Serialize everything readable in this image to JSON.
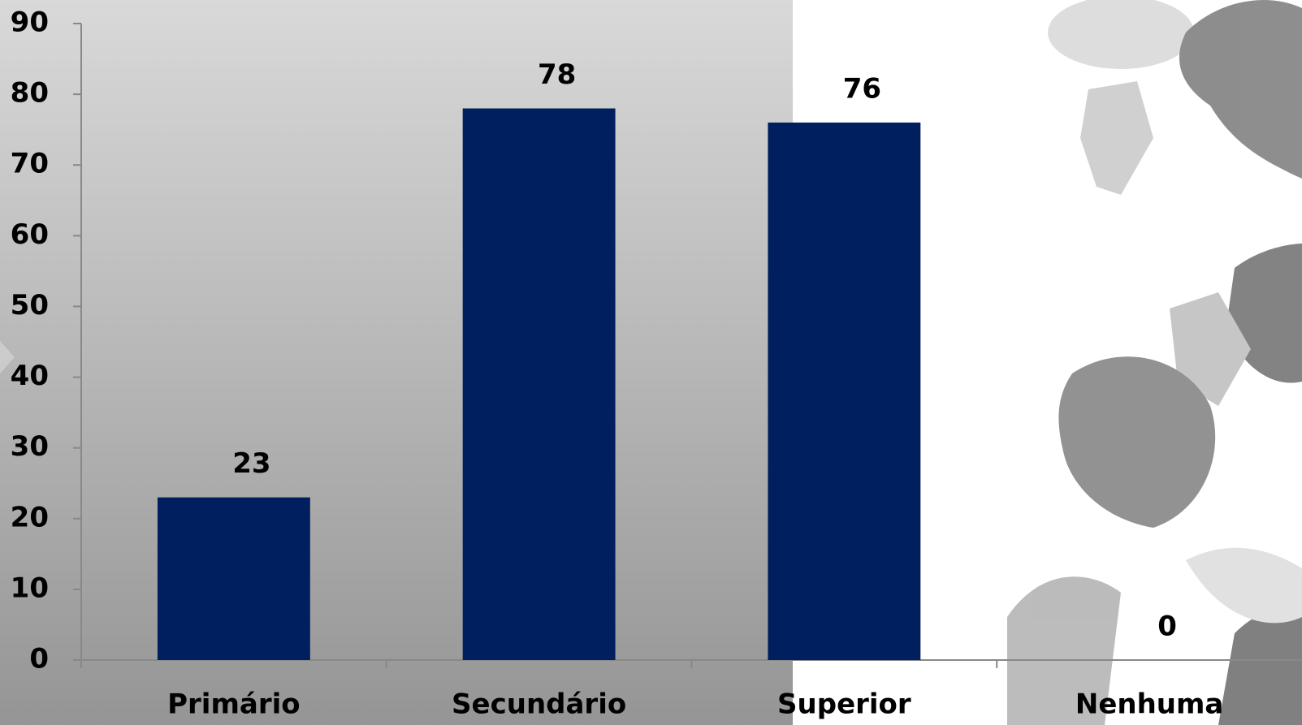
{
  "chart_data": {
    "type": "bar",
    "categories": [
      "Primário",
      "Secundário",
      "Superior",
      "Nenhuma"
    ],
    "values": [
      23,
      78,
      76,
      0
    ],
    "color": "#001f5f",
    "ylim": [
      0,
      90
    ],
    "yticks": [
      0,
      10,
      20,
      30,
      40,
      50,
      60,
      70,
      80,
      90
    ],
    "grid": false
  }
}
